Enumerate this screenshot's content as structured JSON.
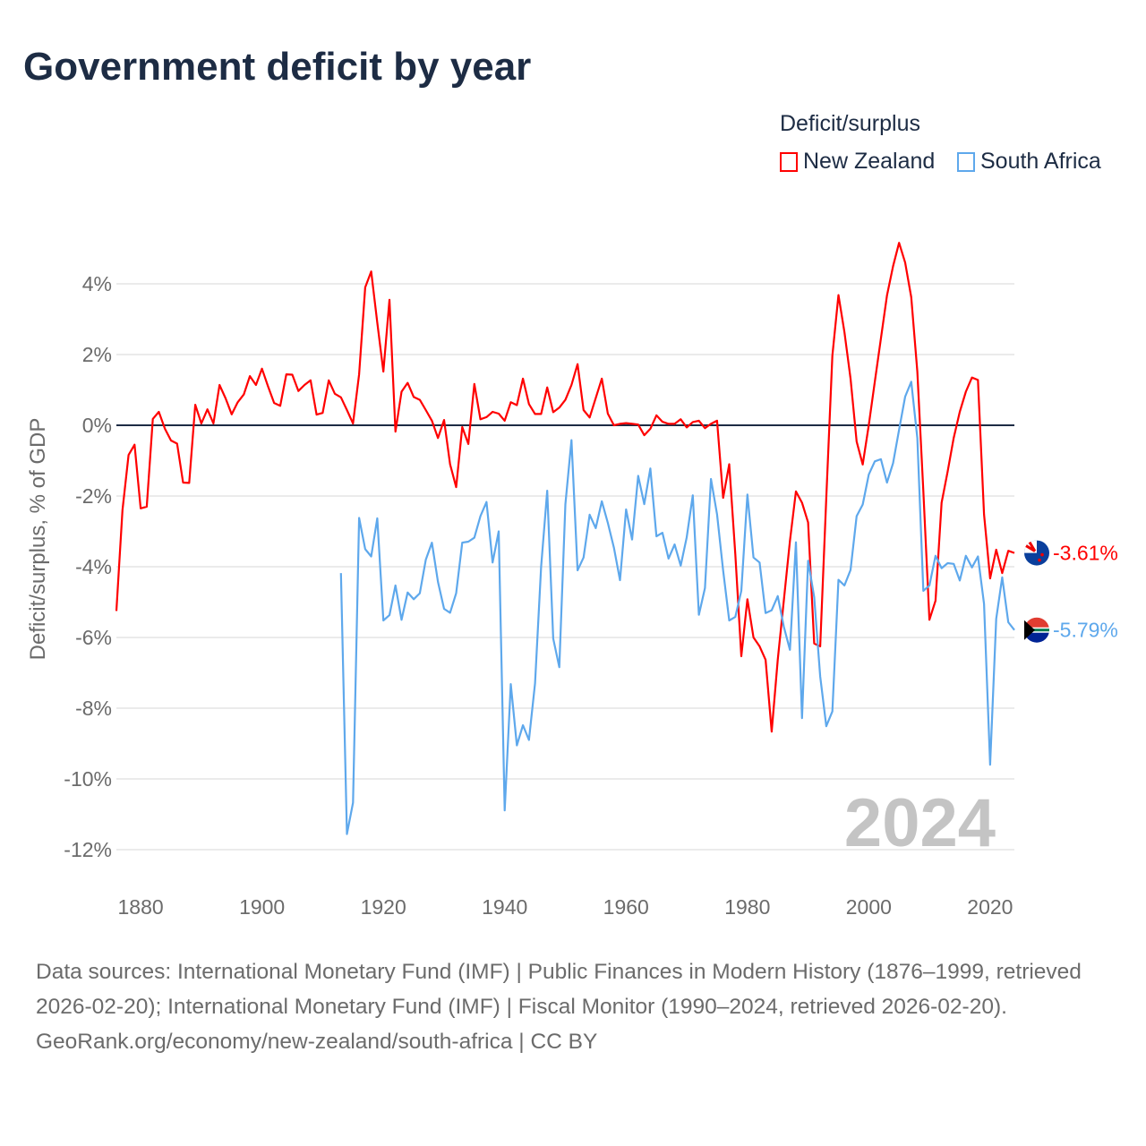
{
  "title": "Government deficit by year",
  "legend": {
    "title": "Deficit/surplus",
    "items": [
      {
        "name": "New Zealand",
        "color": "#ff0000"
      },
      {
        "name": "South Africa",
        "color": "#5ea8ec"
      }
    ]
  },
  "year_label": "2024",
  "footer": {
    "sources": "Data sources: International Monetary Fund (IMF) | Public Finances in Modern History (1876–1999, retrieved 2026-02-20); International Monetary Fund (IMF) | Fiscal Monitor (1990–2024, retrieved 2026-02-20).",
    "credit": "GeoRank.org/economy/new-zealand/south-africa | CC BY"
  },
  "chart_data": {
    "type": "line",
    "title": "Government deficit by year",
    "xlabel": "",
    "ylabel": "Deficit/surplus, % of GDP",
    "xlim": [
      1876,
      2024
    ],
    "ylim": [
      -12,
      4
    ],
    "x_ticks": [
      1880,
      1900,
      1920,
      1940,
      1960,
      1980,
      2000,
      2020
    ],
    "x_tick_labels": [
      "1880",
      "1900",
      "1920",
      "1940",
      "1960",
      "1980",
      "2000",
      "2020"
    ],
    "y_ticks": [
      4,
      2,
      0,
      -2,
      -4,
      -6,
      -8,
      -10,
      -12
    ],
    "y_tick_labels": [
      "4%",
      "2%",
      "0%",
      "-2%",
      "-4%",
      "-6%",
      "-8%",
      "-10%",
      "-12%"
    ],
    "grid": true,
    "legend_position": "top-right",
    "series": [
      {
        "name": "New Zealand",
        "color": "#ff0000",
        "start_year": 1876,
        "end_label": "-3.61%",
        "values": [
          -5.25,
          -2.4,
          -0.84,
          -0.55,
          -2.35,
          -2.3,
          0.18,
          0.38,
          -0.1,
          -0.43,
          -0.52,
          -1.62,
          -1.63,
          0.58,
          0.05,
          0.45,
          0.05,
          1.14,
          0.76,
          0.31,
          0.65,
          0.87,
          1.39,
          1.14,
          1.6,
          1.1,
          0.63,
          0.55,
          1.44,
          1.43,
          0.97,
          1.14,
          1.27,
          0.3,
          0.35,
          1.27,
          0.89,
          0.79,
          0.43,
          0.05,
          1.44,
          3.9,
          4.35,
          2.9,
          1.52,
          3.55,
          -0.18,
          0.95,
          1.2,
          0.8,
          0.72,
          0.43,
          0.13,
          -0.36,
          0.15,
          -1.1,
          -1.75,
          -0.05,
          -0.53,
          1.17,
          0.17,
          0.23,
          0.38,
          0.33,
          0.13,
          0.65,
          0.57,
          1.32,
          0.6,
          0.32,
          0.32,
          1.07,
          0.37,
          0.5,
          0.72,
          1.14,
          1.73,
          0.43,
          0.22,
          0.77,
          1.32,
          0.33,
          0.0,
          0.04,
          0.06,
          0.04,
          0.02,
          -0.28,
          -0.1,
          0.28,
          0.1,
          0.04,
          0.04,
          0.17,
          -0.06,
          0.09,
          0.13,
          -0.08,
          0.04,
          0.13,
          -2.05,
          -1.1,
          -3.65,
          -6.53,
          -4.92,
          -6.0,
          -6.25,
          -6.63,
          -8.66,
          -6.63,
          -4.95,
          -3.27,
          -1.87,
          -2.19,
          -2.75,
          -6.17,
          -6.25,
          -2.05,
          1.97,
          3.68,
          2.63,
          1.32,
          -0.46,
          -1.11,
          0.01,
          1.23,
          2.45,
          3.67,
          4.5,
          5.16,
          4.6,
          3.62,
          1.52,
          -1.86,
          -5.5,
          -4.96,
          -2.19,
          -1.3,
          -0.36,
          0.38,
          0.95,
          1.35,
          1.28,
          -2.52,
          -4.33,
          -3.52,
          -4.18,
          -3.55,
          -3.61
        ]
      },
      {
        "name": "South Africa",
        "color": "#5ea8ec",
        "start_year": 1913,
        "end_label": "-5.79%",
        "values": [
          -4.18,
          -11.56,
          -10.67,
          -2.62,
          -3.5,
          -3.71,
          -2.63,
          -5.52,
          -5.37,
          -4.53,
          -5.5,
          -4.73,
          -4.92,
          -4.75,
          -3.8,
          -3.32,
          -4.43,
          -5.19,
          -5.3,
          -4.75,
          -3.32,
          -3.29,
          -3.18,
          -2.57,
          -2.17,
          -3.88,
          -3.0,
          -10.89,
          -7.32,
          -9.05,
          -8.48,
          -8.9,
          -7.3,
          -4.0,
          -1.85,
          -6.03,
          -6.84,
          -2.23,
          -0.42,
          -4.1,
          -3.74,
          -2.53,
          -2.91,
          -2.15,
          -2.76,
          -3.46,
          -4.38,
          -2.38,
          -3.23,
          -1.43,
          -2.23,
          -1.22,
          -3.14,
          -3.04,
          -3.77,
          -3.37,
          -3.97,
          -3.17,
          -1.98,
          -5.36,
          -4.6,
          -1.52,
          -2.52,
          -4.11,
          -5.52,
          -5.42,
          -4.68,
          -1.96,
          -3.74,
          -3.88,
          -5.31,
          -5.23,
          -4.83,
          -5.7,
          -6.35,
          -3.31,
          -8.28,
          -3.83,
          -4.86,
          -7.1,
          -8.51,
          -8.09,
          -4.37,
          -4.53,
          -4.09,
          -2.57,
          -2.24,
          -1.39,
          -1.02,
          -0.96,
          -1.62,
          -1.07,
          -0.13,
          0.81,
          1.23,
          -0.36,
          -4.68,
          -4.53,
          -3.69,
          -4.04,
          -3.9,
          -3.92,
          -4.39,
          -3.69,
          -4.02,
          -3.71,
          -5.05,
          -9.6,
          -5.47,
          -4.3,
          -5.57,
          -5.79
        ]
      }
    ]
  }
}
